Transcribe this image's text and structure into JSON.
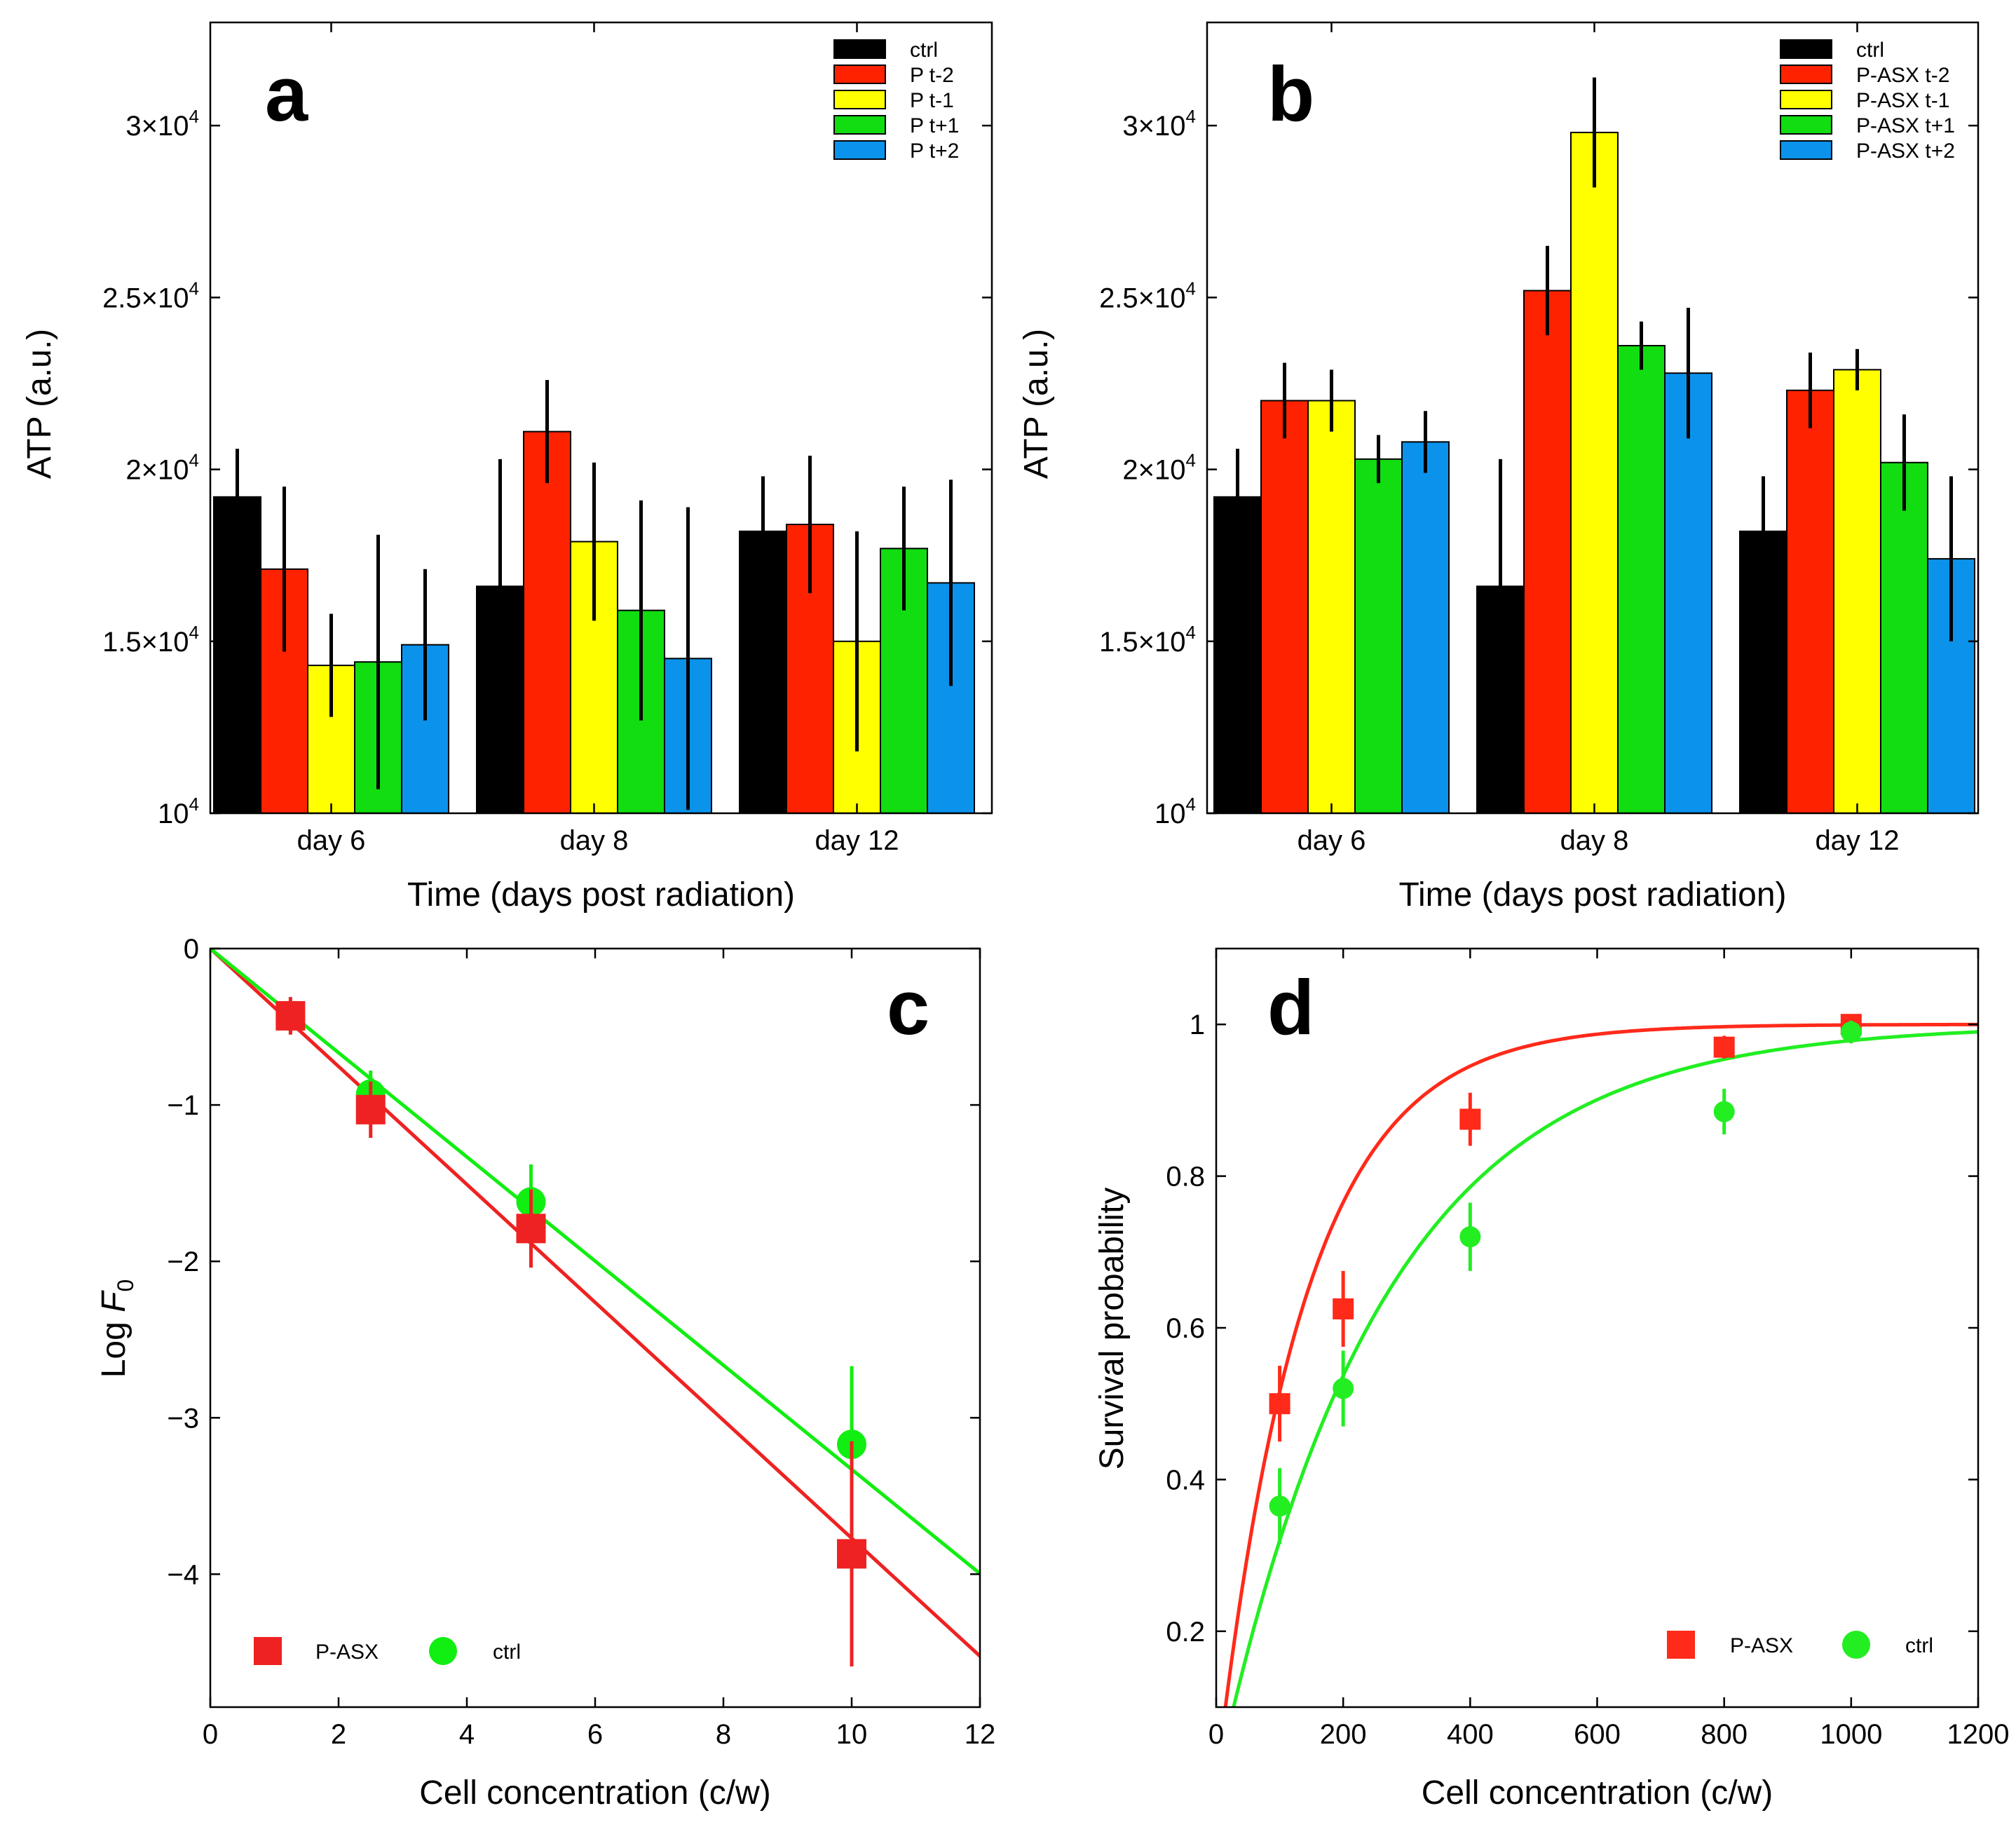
{
  "chart_data": [
    {
      "panel": "a",
      "type": "bar",
      "panel_letter": "a",
      "xlabel": "Time (days post radiation)",
      "ylabel": "ATP (a.u.)",
      "ylim": [
        10000,
        33000
      ],
      "yticks": [
        {
          "value": 10000,
          "mantissa": "10",
          "exp": "4"
        },
        {
          "value": 15000,
          "mantissa": "1.5×10",
          "exp": "4"
        },
        {
          "value": 20000,
          "mantissa": "2×10",
          "exp": "4"
        },
        {
          "value": 25000,
          "mantissa": "2.5×10",
          "exp": "4"
        },
        {
          "value": 30000,
          "mantissa": "3×10",
          "exp": "4"
        }
      ],
      "categories": [
        "day 6",
        "day 8",
        "day 12"
      ],
      "legend_position": "top-right",
      "series": [
        {
          "name": "ctrl",
          "color": "#000000",
          "values": [
            19200,
            16600,
            18200
          ],
          "errors": [
            1400,
            3700,
            1600
          ]
        },
        {
          "name": "P t-2",
          "color": "#ff2200",
          "values": [
            17100,
            21100,
            18400
          ],
          "errors": [
            2400,
            1500,
            2000
          ]
        },
        {
          "name": "P t-1",
          "color": "#ffff00",
          "values": [
            14300,
            17900,
            15000
          ],
          "errors": [
            1500,
            2300,
            3200
          ]
        },
        {
          "name": "P t+1",
          "color": "#11dd11",
          "values": [
            14400,
            15900,
            17700
          ],
          "errors": [
            3700,
            3200,
            1800
          ]
        },
        {
          "name": "P t+2",
          "color": "#0b93ec",
          "values": [
            14900,
            14500,
            16700
          ],
          "errors": [
            2200,
            4400,
            3000
          ]
        }
      ]
    },
    {
      "panel": "b",
      "type": "bar",
      "panel_letter": "b",
      "xlabel": "Time (days post radiation)",
      "ylabel": "ATP (a.u.)",
      "ylim": [
        10000,
        33000
      ],
      "yticks": [
        {
          "value": 10000,
          "mantissa": "10",
          "exp": "4"
        },
        {
          "value": 15000,
          "mantissa": "1.5×10",
          "exp": "4"
        },
        {
          "value": 20000,
          "mantissa": "2×10",
          "exp": "4"
        },
        {
          "value": 25000,
          "mantissa": "2.5×10",
          "exp": "4"
        },
        {
          "value": 30000,
          "mantissa": "3×10",
          "exp": "4"
        }
      ],
      "categories": [
        "day 6",
        "day 8",
        "day 12"
      ],
      "legend_position": "top-right",
      "series": [
        {
          "name": "ctrl",
          "color": "#000000",
          "values": [
            19200,
            16600,
            18200
          ],
          "errors": [
            1400,
            3700,
            1600
          ]
        },
        {
          "name": "P-ASX t-2",
          "color": "#ff2200",
          "values": [
            22000,
            25200,
            22300
          ],
          "errors": [
            1100,
            1300,
            1100
          ]
        },
        {
          "name": "P-ASX t-1",
          "color": "#ffff00",
          "values": [
            22000,
            29800,
            22900
          ],
          "errors": [
            900,
            1600,
            600
          ]
        },
        {
          "name": "P-ASX t+1",
          "color": "#11dd11",
          "values": [
            20300,
            23600,
            20200
          ],
          "errors": [
            700,
            700,
            1400
          ]
        },
        {
          "name": "P-ASX t+2",
          "color": "#0b93ec",
          "values": [
            20800,
            22800,
            17400
          ],
          "errors": [
            900,
            1900,
            2400
          ]
        }
      ]
    },
    {
      "panel": "c",
      "type": "scatter",
      "panel_letter": "c",
      "xlabel": "Cell concentration (c/w)",
      "ylabel_main": "Log ",
      "ylabel_var": "F",
      "ylabel_sub": "0",
      "xlim": [
        0,
        12
      ],
      "ylim": [
        -4.85,
        0
      ],
      "xticks": [
        {
          "value": 0,
          "label": "0"
        },
        {
          "value": 2,
          "label": "2"
        },
        {
          "value": 4,
          "label": "4"
        },
        {
          "value": 6,
          "label": "6"
        },
        {
          "value": 8,
          "label": "8"
        },
        {
          "value": 10,
          "label": "10"
        },
        {
          "value": 12,
          "label": "12"
        }
      ],
      "yticks": [
        {
          "value": 0,
          "label": "0"
        },
        {
          "value": -1,
          "label": "−1"
        },
        {
          "value": -2,
          "label": "−2"
        },
        {
          "value": -3,
          "label": "−3"
        },
        {
          "value": -4,
          "label": "−4"
        }
      ],
      "legend_position": "bottom-left",
      "series": [
        {
          "name": "P-ASX",
          "marker": "square",
          "color": "#ee2222",
          "x": [
            1.25,
            2.5,
            5,
            10
          ],
          "y": [
            -0.43,
            -1.03,
            -1.79,
            -3.87
          ],
          "errors": [
            0.12,
            0.18,
            0.25,
            0.72
          ],
          "fit": {
            "type": "linear",
            "slope": -0.377,
            "intercept": 0
          }
        },
        {
          "name": "ctrl",
          "marker": "circle",
          "color": "#11ee11",
          "x": [
            1.25,
            2.5,
            5,
            10
          ],
          "y": [
            -0.43,
            -0.93,
            -1.62,
            -3.17
          ],
          "errors": [
            0.1,
            0.15,
            0.24,
            0.5
          ],
          "fit": {
            "type": "linear",
            "slope": -0.333,
            "intercept": 0
          }
        }
      ]
    },
    {
      "panel": "d",
      "type": "scatter",
      "panel_letter": "d",
      "xlabel": "Cell concentration (c/w)",
      "ylabel": "Survival probability",
      "xlim": [
        0,
        1200
      ],
      "ylim": [
        0.1,
        1.1
      ],
      "xticks": [
        {
          "value": 0,
          "label": "0"
        },
        {
          "value": 200,
          "label": "200"
        },
        {
          "value": 400,
          "label": "400"
        },
        {
          "value": 600,
          "label": "600"
        },
        {
          "value": 800,
          "label": "800"
        },
        {
          "value": 1000,
          "label": "1000"
        },
        {
          "value": 1200,
          "label": "1200"
        }
      ],
      "yticks": [
        {
          "value": 0.2,
          "label": "0.2"
        },
        {
          "value": 0.4,
          "label": "0.4"
        },
        {
          "value": 0.6,
          "label": "0.6"
        },
        {
          "value": 0.8,
          "label": "0.8"
        },
        {
          "value": 1,
          "label": "1"
        }
      ],
      "legend_position": "bottom-right",
      "series": [
        {
          "name": "P-ASX",
          "marker": "square",
          "color": "#ff2a1a",
          "x": [
            100,
            200,
            400,
            800,
            1000
          ],
          "y": [
            0.5,
            0.625,
            0.875,
            0.97,
            1.0
          ],
          "errors": [
            0.05,
            0.05,
            0.035,
            0.015,
            0.01
          ],
          "fit": {
            "type": "exp",
            "k": 0.00725,
            "x0": 4
          }
        },
        {
          "name": "ctrl",
          "marker": "circle",
          "color": "#22ee22",
          "x": [
            100,
            200,
            400,
            800,
            1000
          ],
          "y": [
            0.365,
            0.52,
            0.72,
            0.885,
            0.99
          ],
          "errors": [
            0.05,
            0.05,
            0.045,
            0.03,
            0.015
          ],
          "fit": {
            "type": "exp",
            "k": 0.00385,
            "x0": 8
          }
        }
      ]
    }
  ]
}
